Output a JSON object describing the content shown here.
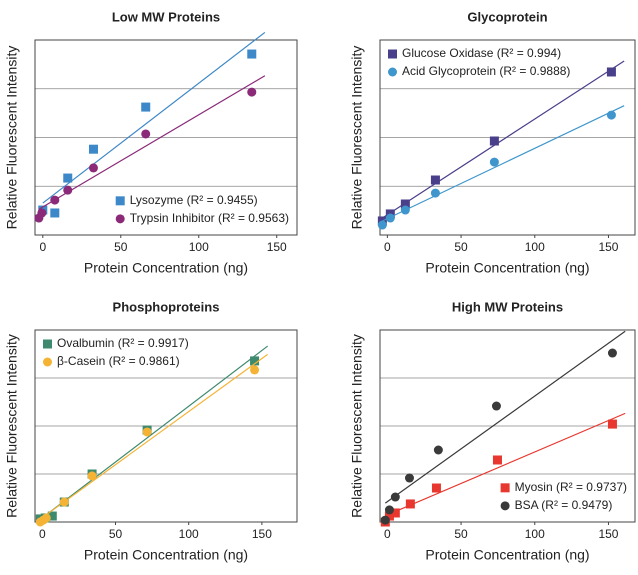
{
  "chart_data": [
    {
      "type": "scatter",
      "title": "Low MW Proteins",
      "x_label": "Protein Concentration (ng)",
      "y_label": "Relative Fluorescent Intensity",
      "xlim": [
        -5,
        163
      ],
      "xticks": [
        0,
        50,
        100,
        150
      ],
      "ylim": [
        0,
        100
      ],
      "yticks": [
        25,
        50,
        75
      ],
      "grid": true,
      "legend": "lower right",
      "series": [
        {
          "name": "Lysozyme (R² = 0.9455)",
          "color": "#3d88c8",
          "marker": "square",
          "x": [
            0,
            7.7,
            16,
            32.5,
            66,
            134
          ],
          "values": [
            12.8,
            11.3,
            29.2,
            44,
            65.6,
            92.8
          ]
        },
        {
          "name": "Trypsin Inhibitor (R² = 0.9563)",
          "color": "#8a2a78",
          "marker": "circle",
          "x": [
            -2.5,
            -0.6,
            7.7,
            16,
            32.5,
            66,
            134
          ],
          "values": [
            8.7,
            11.3,
            17.9,
            23,
            34.4,
            51.8,
            73.3
          ]
        }
      ]
    },
    {
      "type": "scatter",
      "title": "Glycoprotein",
      "x_label": "Protein Concentration (ng)",
      "y_label": "Relative Fluorescent Intensity",
      "xlim": [
        -5,
        168
      ],
      "xticks": [
        0,
        50,
        100,
        150
      ],
      "ylim": [
        0,
        100
      ],
      "yticks": [
        25,
        50,
        75
      ],
      "grid": true,
      "legend": "upper left",
      "series": [
        {
          "name": "Glucose Oxidase (R² = 0.994)",
          "color": "#4a3f8a",
          "marker": "square",
          "x": [
            -3.4,
            2,
            12.2,
            32.6,
            72.6,
            152
          ],
          "values": [
            7.2,
            10.8,
            15.9,
            28.2,
            48.2,
            83.6
          ]
        },
        {
          "name": "Acid Glycoprotein (R² = 0.9888)",
          "color": "#3f96cc",
          "marker": "circle",
          "x": [
            -3.4,
            2,
            12.2,
            32.6,
            72.6,
            152
          ],
          "values": [
            5.1,
            8.7,
            12.8,
            21.5,
            37.4,
            61.5
          ]
        }
      ]
    },
    {
      "type": "scatter",
      "title": "Phosphoproteins",
      "x_label": "Protein Concentration (ng)",
      "y_label": "Relative Fluorescent Intensity",
      "xlim": [
        -5,
        174
      ],
      "xticks": [
        0,
        50,
        100,
        150
      ],
      "ylim": [
        0,
        100
      ],
      "yticks": [
        25,
        50,
        75
      ],
      "grid": true,
      "legend": "upper left",
      "series": [
        {
          "name": "Ovalbumin (R² = 0.9917)",
          "color": "#3d8a6e",
          "marker": "square",
          "x": [
            -1.4,
            2,
            6.8,
            15,
            34,
            71.6,
            145
          ],
          "values": [
            1.6,
            2.1,
            3.1,
            10.4,
            25,
            47.9,
            83.9
          ]
        },
        {
          "name": "β-Casein (R² = 0.9861)",
          "color": "#f5b335",
          "marker": "circle",
          "x": [
            -1.4,
            0.7,
            2.7,
            15,
            34,
            71.6,
            145
          ],
          "values": [
            0,
            1,
            2.1,
            10.4,
            24,
            46.9,
            79.2
          ]
        }
      ]
    },
    {
      "type": "scatter",
      "title": "High MW Proteins",
      "x_label": "Protein Concentration (ng)",
      "y_label": "Relative Fluorescent Intensity",
      "xlim": [
        -5,
        168
      ],
      "xticks": [
        0,
        50,
        100,
        150
      ],
      "ylim": [
        0,
        100
      ],
      "yticks": [
        25,
        50,
        75
      ],
      "grid": true,
      "legend": "lower right",
      "series": [
        {
          "name": "Myosin (R² = 0.9737)",
          "color": "#e8372e",
          "marker": "square",
          "x": [
            -1.4,
            1.4,
            5.4,
            15.6,
            33.3,
            74.7,
            152.7
          ],
          "values": [
            0,
            3.1,
            4.7,
            9.4,
            17.7,
            32.3,
            51
          ]
        },
        {
          "name": "BSA (R² = 0.9479)",
          "color": "#3a3a3a",
          "marker": "circle",
          "x": [
            -1.4,
            1.4,
            5.4,
            15,
            34.6,
            74,
            152.7
          ],
          "values": [
            1,
            6.3,
            13,
            22.9,
            37.5,
            60.4,
            88
          ]
        }
      ]
    }
  ]
}
